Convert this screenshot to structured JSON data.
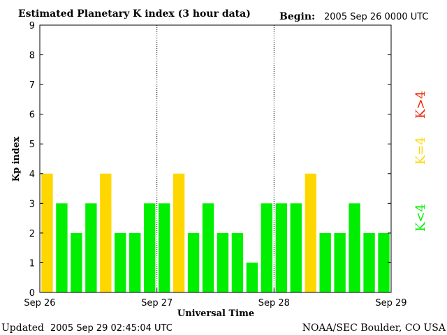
{
  "header": {
    "title": "Estimated Planetary K index (3 hour data)",
    "begin_label": "Begin:",
    "begin_value": "2005 Sep 26 0000 UTC"
  },
  "footer": {
    "updated_label": "Updated",
    "updated_value": "2005 Sep 29 02:45:04 UTC",
    "source": "NOAA/SEC Boulder, CO USA"
  },
  "legend": {
    "low": "K<4",
    "equal": "K=4",
    "high": "K>4"
  },
  "colors": {
    "low": "#00ee00",
    "equal": "#ffd700",
    "high": "#ee2200"
  },
  "chart_data": {
    "type": "bar",
    "title": "Estimated Planetary K index (3 hour data)",
    "xlabel": "Universal Time",
    "ylabel": "Kp index",
    "ylim": [
      0,
      9
    ],
    "yticks": [
      0,
      1,
      2,
      3,
      4,
      5,
      6,
      7,
      8,
      9
    ],
    "xticks": [
      "Sep 26",
      "Sep 27",
      "Sep 28",
      "Sep 29"
    ],
    "day_separators": true,
    "values": [
      4,
      3,
      2,
      3,
      4,
      2,
      2,
      3,
      3,
      4,
      2,
      3,
      2,
      2,
      1,
      3,
      3,
      3,
      4,
      2,
      2,
      3,
      2,
      2
    ]
  }
}
